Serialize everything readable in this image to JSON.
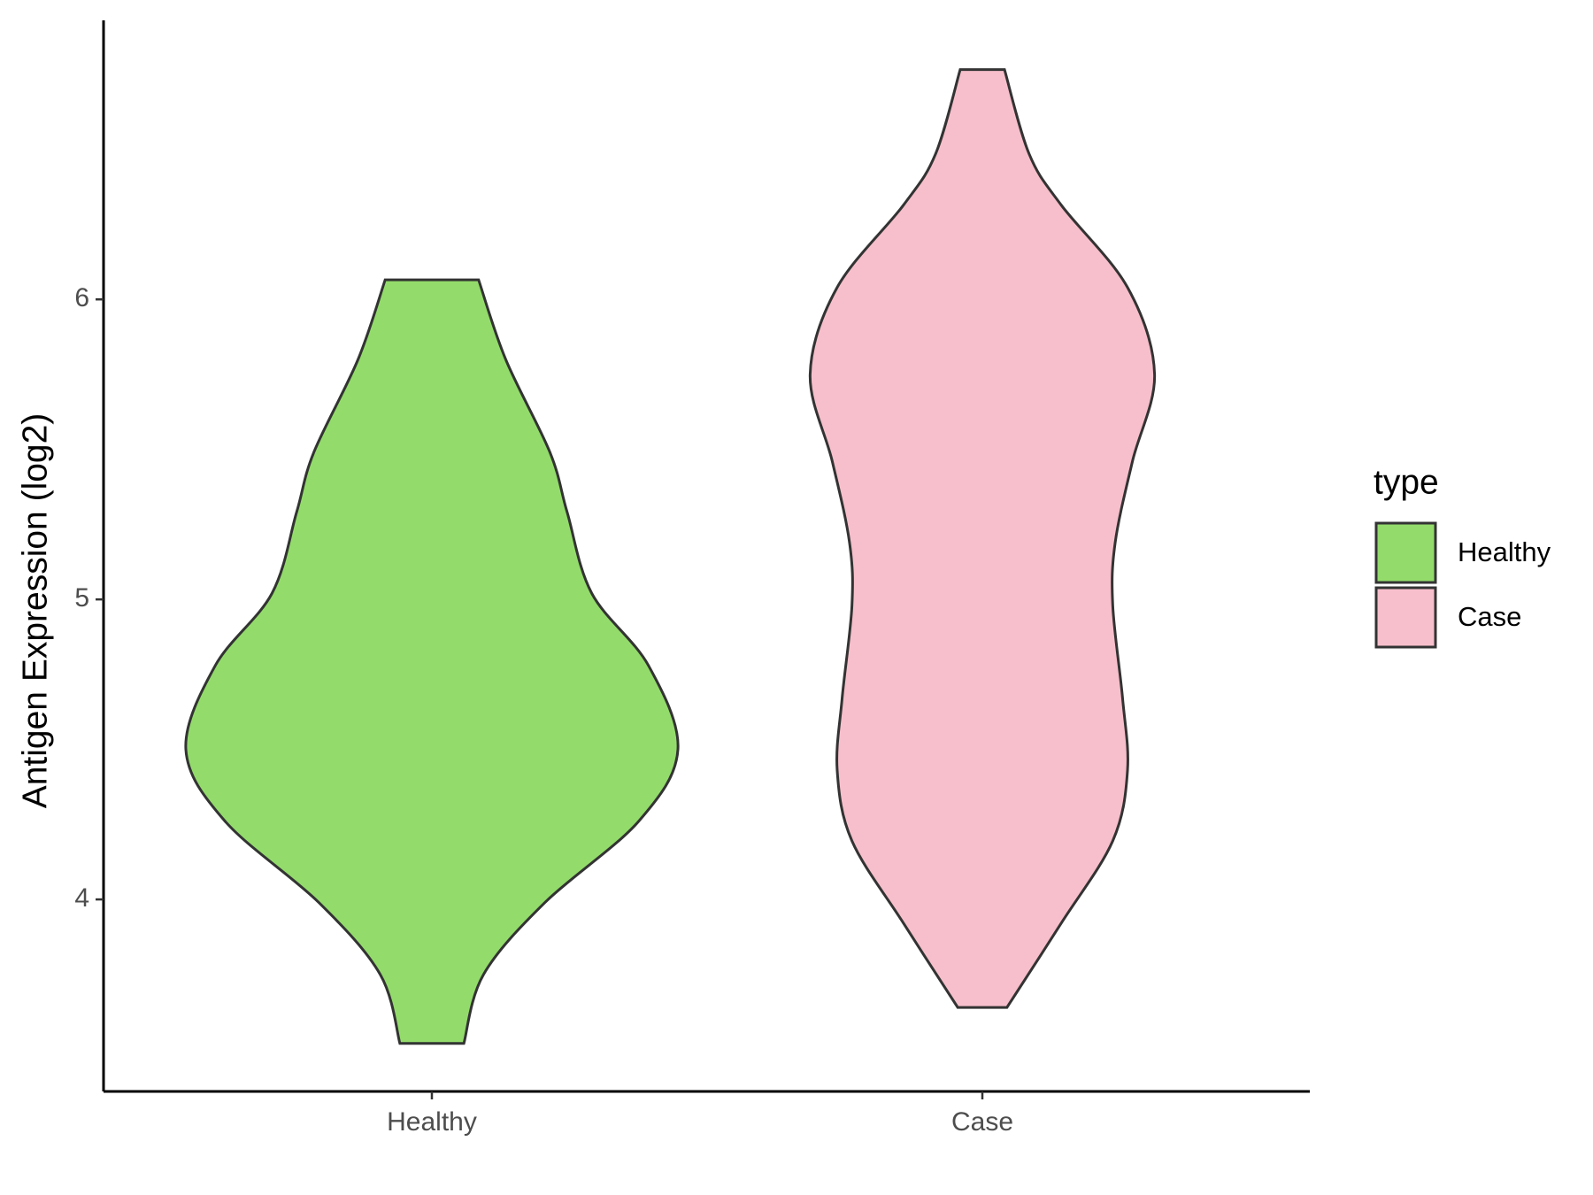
{
  "chart_data": {
    "type": "violin",
    "y_label": "Antigen Expression (log2)",
    "categories": [
      "Healthy",
      "Case"
    ],
    "legend_title": "type",
    "ylim": [
      3.36,
      6.93
    ],
    "yticks": [
      4,
      5,
      6
    ],
    "series": [
      {
        "name": "Healthy",
        "color": "#93dc6b",
        "y": [
          6.065,
          5.8,
          5.49,
          5.29,
          5.02,
          4.78,
          4.5,
          4.26,
          3.99,
          3.75,
          3.52
        ],
        "width": [
          0.19,
          0.3,
          0.48,
          0.55,
          0.65,
          0.88,
          1.0,
          0.84,
          0.46,
          0.21,
          0.13
        ]
      },
      {
        "name": "Case",
        "color": "#f7bfcb",
        "y": [
          6.766,
          6.485,
          6.315,
          6.04,
          5.75,
          5.46,
          5.19,
          4.98,
          4.67,
          4.43,
          4.195,
          3.92,
          3.64
        ],
        "width": [
          0.09,
          0.19,
          0.32,
          0.59,
          0.7,
          0.61,
          0.54,
          0.53,
          0.57,
          0.59,
          0.53,
          0.32,
          0.1
        ]
      }
    ]
  }
}
